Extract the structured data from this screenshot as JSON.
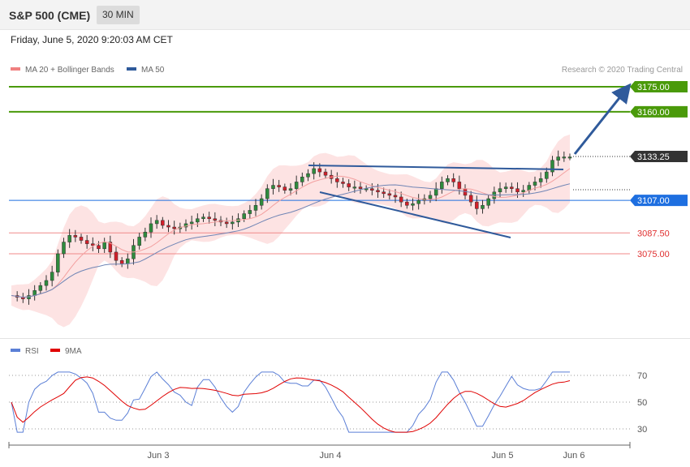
{
  "header": {
    "title": "S&P 500 (CME)",
    "timeframe": "30 MIN"
  },
  "datetime": "Friday, June 5, 2020 9:20:03 AM CET",
  "legend": {
    "bb_label": "MA 20 + Bollinger Bands",
    "ma50_label": "MA 50",
    "credit": "Research © 2020 Trading Central",
    "bb_color": "#f08080",
    "ma50_color": "#2f5a9b"
  },
  "rsi_legend": {
    "rsi_label": "RSI",
    "ma_label": "9MA",
    "rsi_color": "#5b7fd6",
    "ma_color": "#e00000"
  },
  "chart_data": {
    "type": "candlestick",
    "price_axis": {
      "min": 3035,
      "max": 3185
    },
    "x_labels": [
      "Jun 3",
      "Jun 4",
      "Jun 5",
      "Jun 6"
    ],
    "levels": [
      {
        "label": "3175.00",
        "value": 3175.0,
        "color": "#4a9a0a",
        "kind": "resistance"
      },
      {
        "label": "3160.00",
        "value": 3160.0,
        "color": "#4a9a0a",
        "kind": "resistance"
      },
      {
        "label": "3133.25",
        "value": 3133.25,
        "color": "#333333",
        "kind": "last"
      },
      {
        "label": "3107.00",
        "value": 3107.0,
        "color": "#1e6fe0",
        "kind": "pivot"
      },
      {
        "label": "3087.50",
        "value": 3087.5,
        "color": "#e03030",
        "kind": "support"
      },
      {
        "label": "3075.00",
        "value": 3075.0,
        "color": "#e03030",
        "kind": "support"
      }
    ],
    "close_path": [
      3050,
      3049,
      3048,
      3050,
      3053,
      3056,
      3059,
      3064,
      3075,
      3082,
      3086,
      3085,
      3083,
      3081,
      3080,
      3078,
      3082,
      3076,
      3071,
      3069,
      3072,
      3080,
      3085,
      3088,
      3093,
      3095,
      3092,
      3091,
      3090,
      3091,
      3093,
      3094,
      3096,
      3097,
      3096,
      3095,
      3094,
      3093,
      3094,
      3096,
      3099,
      3101,
      3104,
      3108,
      3114,
      3116,
      3115,
      3113,
      3114,
      3118,
      3121,
      3123,
      3126,
      3124,
      3122,
      3120,
      3118,
      3117,
      3115,
      3115,
      3114,
      3114,
      3113,
      3112,
      3111,
      3110,
      3109,
      3106,
      3104,
      3105,
      3107,
      3108,
      3110,
      3114,
      3118,
      3120,
      3118,
      3114,
      3110,
      3106,
      3102,
      3104,
      3108,
      3112,
      3114,
      3115,
      3114,
      3112,
      3113,
      3116,
      3118,
      3120,
      3124,
      3131,
      3133,
      3133,
      3133
    ],
    "rsi": {
      "levels": [
        70,
        50,
        30
      ]
    }
  }
}
